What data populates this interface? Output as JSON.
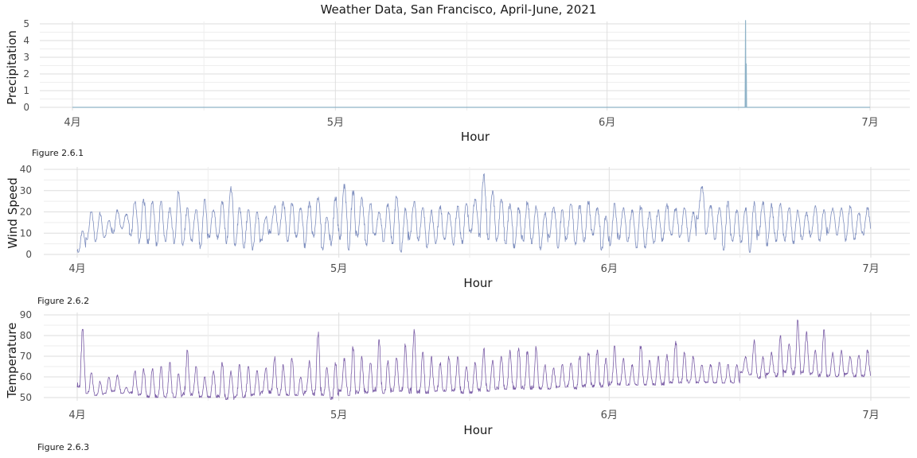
{
  "title": "Weather Data, San Francisco, April-June, 2021",
  "colors": {
    "background": "#ffffff",
    "grid_major": "#dedede",
    "grid_minor": "#eeeeee"
  },
  "chart_data": [
    {
      "type": "line",
      "ylabel": "Precipitation",
      "xlabel": "Hour",
      "caption": "Figure 2.6.1",
      "color": "#8fb3c8",
      "yticks": [
        "0",
        "1",
        "2",
        "3",
        "4",
        "5"
      ],
      "xticks": [
        "4月",
        "5月",
        "6月",
        "7月"
      ],
      "xlim": [
        "2021-04-01",
        "2021-07-01"
      ],
      "ylim": [
        0,
        5
      ],
      "grid": true,
      "points": [
        [
          "2021-04-01",
          0
        ],
        [
          "2021-06-16 18:00",
          0
        ],
        [
          "2021-06-16 19:00",
          5.2
        ],
        [
          "2021-06-16 20:00",
          0
        ],
        [
          "2021-06-16 21:00",
          2.6
        ],
        [
          "2021-06-16 22:00",
          0
        ],
        [
          "2021-07-01",
          0
        ]
      ]
    },
    {
      "type": "line",
      "ylabel": "Wind Speed",
      "xlabel": "Hour",
      "caption": "Figure 2.6.2",
      "color": "#7f8fbf",
      "yticks": [
        "0",
        "10",
        "20",
        "30",
        "40"
      ],
      "xticks": [
        "4月",
        "5月",
        "6月",
        "7月"
      ],
      "xlim": [
        "2021-04-01",
        "2021-07-01"
      ],
      "ylim": [
        0,
        40
      ],
      "grid": true,
      "x_dates": [
        "2021-04-01",
        "2021-04-02",
        "2021-04-03",
        "2021-04-04",
        "2021-04-05",
        "2021-04-06",
        "2021-04-07",
        "2021-04-08",
        "2021-04-09",
        "2021-04-10",
        "2021-04-11",
        "2021-04-12",
        "2021-04-13",
        "2021-04-14",
        "2021-04-15",
        "2021-04-16",
        "2021-04-17",
        "2021-04-18",
        "2021-04-19",
        "2021-04-20",
        "2021-04-21",
        "2021-04-22",
        "2021-04-23",
        "2021-04-24",
        "2021-04-25",
        "2021-04-26",
        "2021-04-27",
        "2021-04-28",
        "2021-04-29",
        "2021-04-30",
        "2021-05-01",
        "2021-05-02",
        "2021-05-03",
        "2021-05-04",
        "2021-05-05",
        "2021-05-06",
        "2021-05-07",
        "2021-05-08",
        "2021-05-09",
        "2021-05-10",
        "2021-05-11",
        "2021-05-12",
        "2021-05-13",
        "2021-05-14",
        "2021-05-15",
        "2021-05-16",
        "2021-05-17",
        "2021-05-18",
        "2021-05-19",
        "2021-05-20",
        "2021-05-21",
        "2021-05-22",
        "2021-05-23",
        "2021-05-24",
        "2021-05-25",
        "2021-05-26",
        "2021-05-27",
        "2021-05-28",
        "2021-05-29",
        "2021-05-30",
        "2021-05-31",
        "2021-06-01",
        "2021-06-02",
        "2021-06-03",
        "2021-06-04",
        "2021-06-05",
        "2021-06-06",
        "2021-06-07",
        "2021-06-08",
        "2021-06-09",
        "2021-06-10",
        "2021-06-11",
        "2021-06-12",
        "2021-06-13",
        "2021-06-14",
        "2021-06-15",
        "2021-06-16",
        "2021-06-17",
        "2021-06-18",
        "2021-06-19",
        "2021-06-20",
        "2021-06-21",
        "2021-06-22",
        "2021-06-23",
        "2021-06-24",
        "2021-06-25",
        "2021-06-26",
        "2021-06-27",
        "2021-06-28",
        "2021-06-29",
        "2021-06-30"
      ],
      "daily_min": [
        1,
        7,
        6,
        8,
        10,
        12,
        8,
        5,
        5,
        4,
        6,
        5,
        4,
        6,
        2,
        8,
        7,
        5,
        4,
        3,
        2,
        6,
        10,
        9,
        6,
        8,
        3,
        8,
        2,
        4,
        7,
        2,
        8,
        4,
        9,
        6,
        5,
        1,
        7,
        6,
        3,
        5,
        7,
        4,
        5,
        10,
        8,
        7,
        6,
        5,
        3,
        6,
        5,
        2,
        8,
        3,
        7,
        4,
        5,
        9,
        2,
        4,
        7,
        6,
        3,
        3,
        5,
        6,
        9,
        8,
        6,
        16,
        9,
        7,
        2,
        6,
        5,
        1,
        8,
        4,
        6,
        6,
        5,
        7,
        8,
        6,
        10,
        9,
        6,
        7,
        9
      ],
      "daily_max": [
        11,
        20,
        20,
        16,
        21,
        19,
        25,
        26,
        25,
        25,
        22,
        30,
        22,
        21,
        26,
        21,
        25,
        32,
        22,
        21,
        20,
        18,
        23,
        25,
        24,
        22,
        25,
        27,
        18,
        27,
        33,
        30,
        27,
        24,
        20,
        24,
        28,
        22,
        25,
        22,
        21,
        23,
        20,
        23,
        24,
        26,
        38,
        30,
        26,
        24,
        22,
        25,
        23,
        20,
        23,
        21,
        24,
        23,
        25,
        22,
        18,
        24,
        22,
        21,
        23,
        20,
        21,
        24,
        22,
        22,
        20,
        32,
        23,
        22,
        25,
        21,
        22,
        25,
        25,
        24,
        24,
        22,
        21,
        20,
        23,
        21,
        22,
        22,
        23,
        20,
        22
      ]
    },
    {
      "type": "line",
      "ylabel": "Temperature",
      "xlabel": "Hour",
      "caption": "Figure 2.6.3",
      "color": "#7b5ea7",
      "yticks": [
        "50",
        "60",
        "70",
        "80",
        "90"
      ],
      "xticks": [
        "4月",
        "5月",
        "6月",
        "7月"
      ],
      "xlim": [
        "2021-04-01",
        "2021-07-01"
      ],
      "ylim": [
        45,
        92
      ],
      "grid": true,
      "x_dates": [
        "2021-04-01",
        "2021-04-02",
        "2021-04-03",
        "2021-04-04",
        "2021-04-05",
        "2021-04-06",
        "2021-04-07",
        "2021-04-08",
        "2021-04-09",
        "2021-04-10",
        "2021-04-11",
        "2021-04-12",
        "2021-04-13",
        "2021-04-14",
        "2021-04-15",
        "2021-04-16",
        "2021-04-17",
        "2021-04-18",
        "2021-04-19",
        "2021-04-20",
        "2021-04-21",
        "2021-04-22",
        "2021-04-23",
        "2021-04-24",
        "2021-04-25",
        "2021-04-26",
        "2021-04-27",
        "2021-04-28",
        "2021-04-29",
        "2021-04-30",
        "2021-05-01",
        "2021-05-02",
        "2021-05-03",
        "2021-05-04",
        "2021-05-05",
        "2021-05-06",
        "2021-05-07",
        "2021-05-08",
        "2021-05-09",
        "2021-05-10",
        "2021-05-11",
        "2021-05-12",
        "2021-05-13",
        "2021-05-14",
        "2021-05-15",
        "2021-05-16",
        "2021-05-17",
        "2021-05-18",
        "2021-05-19",
        "2021-05-20",
        "2021-05-21",
        "2021-05-22",
        "2021-05-23",
        "2021-05-24",
        "2021-05-25",
        "2021-05-26",
        "2021-05-27",
        "2021-05-28",
        "2021-05-29",
        "2021-05-30",
        "2021-05-31",
        "2021-06-01",
        "2021-06-02",
        "2021-06-03",
        "2021-06-04",
        "2021-06-05",
        "2021-06-06",
        "2021-06-07",
        "2021-06-08",
        "2021-06-09",
        "2021-06-10",
        "2021-06-11",
        "2021-06-12",
        "2021-06-13",
        "2021-06-14",
        "2021-06-15",
        "2021-06-16",
        "2021-06-17",
        "2021-06-18",
        "2021-06-19",
        "2021-06-20",
        "2021-06-21",
        "2021-06-22",
        "2021-06-23",
        "2021-06-24",
        "2021-06-25",
        "2021-06-26",
        "2021-06-27",
        "2021-06-28",
        "2021-06-29",
        "2021-06-30"
      ],
      "daily_min": [
        55,
        52,
        51,
        52,
        53,
        52,
        52,
        51,
        50,
        50,
        50,
        50,
        51,
        51,
        50,
        50,
        50,
        49,
        50,
        50,
        51,
        52,
        52,
        51,
        51,
        51,
        52,
        51,
        51,
        49,
        53,
        51,
        52,
        52,
        53,
        52,
        53,
        53,
        52,
        52,
        52,
        53,
        53,
        53,
        52,
        52,
        53,
        53,
        54,
        54,
        54,
        54,
        54,
        54,
        54,
        55,
        55,
        54,
        55,
        55,
        55,
        56,
        56,
        56,
        56,
        56,
        56,
        56,
        57,
        57,
        57,
        57,
        57,
        57,
        57,
        57,
        62,
        61,
        59,
        61,
        60,
        62,
        61,
        62,
        61,
        60,
        60,
        60,
        61,
        60,
        60
      ],
      "daily_max": [
        83,
        62,
        58,
        60,
        61,
        55,
        63,
        64,
        64,
        65,
        67,
        62,
        73,
        65,
        60,
        63,
        67,
        63,
        66,
        65,
        63,
        65,
        70,
        66,
        69,
        60,
        68,
        82,
        65,
        67,
        69,
        75,
        70,
        67,
        78,
        68,
        70,
        76,
        83,
        72,
        70,
        67,
        70,
        70,
        65,
        67,
        74,
        68,
        70,
        73,
        74,
        73,
        75,
        66,
        65,
        66,
        67,
        70,
        72,
        73,
        69,
        75,
        69,
        66,
        76,
        68,
        70,
        71,
        78,
        72,
        70,
        66,
        66,
        67,
        66,
        66,
        70,
        78,
        70,
        72,
        80,
        76,
        88,
        82,
        73,
        83,
        72,
        73,
        70,
        71,
        73
      ]
    }
  ]
}
